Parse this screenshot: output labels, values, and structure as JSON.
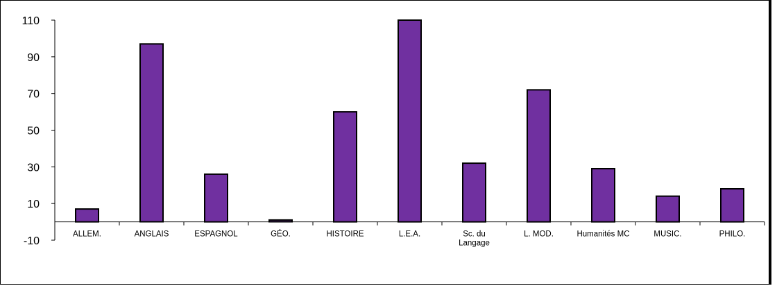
{
  "chart_data": {
    "type": "bar",
    "title": "",
    "xlabel": "",
    "ylabel": "",
    "categories": [
      [
        "ALLEM."
      ],
      [
        "ANGLAIS"
      ],
      [
        "ESPAGNOL"
      ],
      [
        "GÉO."
      ],
      [
        "HISTOIRE"
      ],
      [
        "L.E.A."
      ],
      [
        "Sc. du",
        "Langage"
      ],
      [
        "L. MOD."
      ],
      [
        "Humanités MC"
      ],
      [
        "MUSIC."
      ],
      [
        "PHILO."
      ]
    ],
    "values": [
      7,
      97,
      26,
      1,
      60,
      110,
      32,
      72,
      29,
      14,
      18
    ],
    "ylim": [
      -10,
      110
    ],
    "yticks": [
      "110",
      "90",
      "70",
      "50",
      "30",
      "10",
      "-10"
    ],
    "grid": false,
    "legend": "none",
    "colors": {
      "bar": "#7030A0",
      "edge": "#000000"
    }
  }
}
